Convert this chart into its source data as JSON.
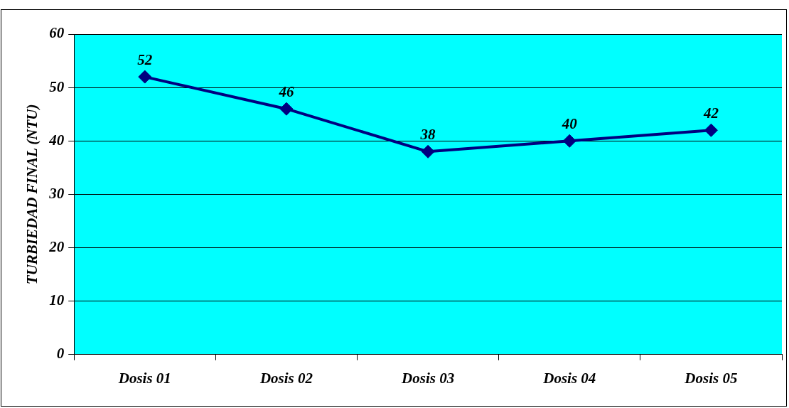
{
  "chart_data": {
    "type": "line",
    "ylabel": "TURBIEDAD FINAL (NTU)",
    "categories": [
      "Dosis 01",
      "Dosis 02",
      "Dosis 03",
      "Dosis 04",
      "Dosis 05"
    ],
    "series": [
      {
        "color": "#000080",
        "values": [
          52,
          46,
          38,
          40,
          42
        ]
      }
    ],
    "ylim": [
      0,
      60
    ],
    "yticks": [
      0,
      10,
      20,
      30,
      40,
      50,
      60
    ],
    "grid": "y",
    "legend": false,
    "marker": "diamond",
    "line_style": "solid",
    "data_labels": true
  }
}
